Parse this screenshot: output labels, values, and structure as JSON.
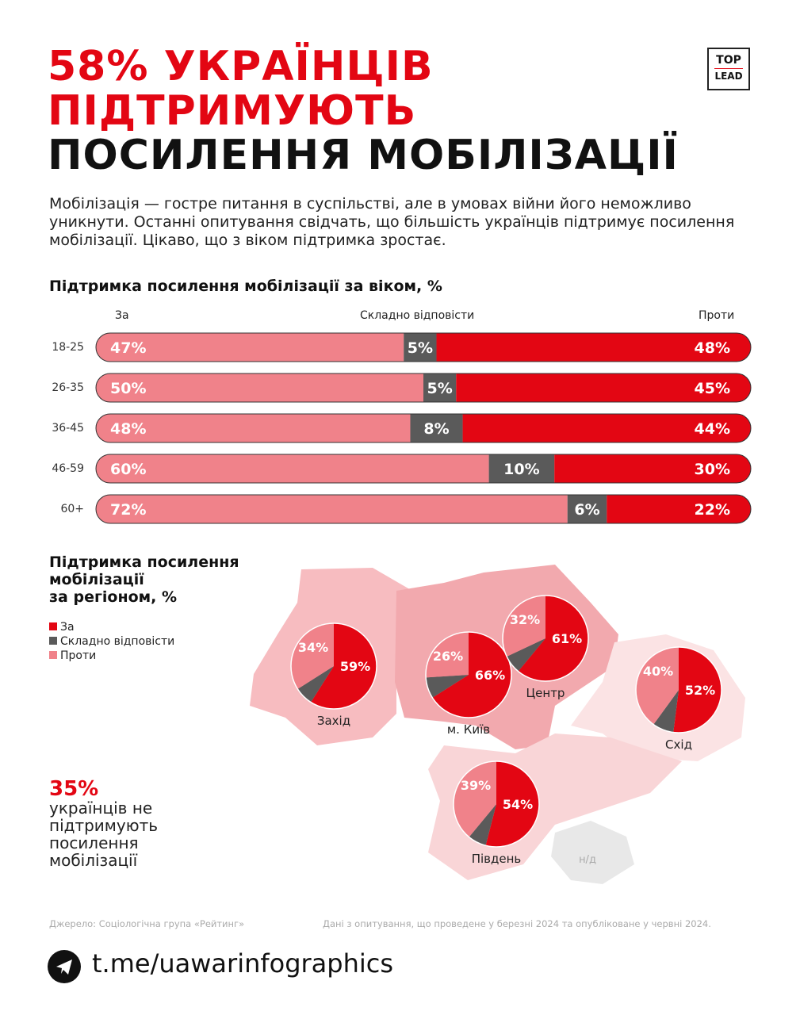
{
  "header": {
    "title_line1": "58% УКРАЇНЦІВ",
    "title_line2": "ПІДТРИМУЮТЬ",
    "title_line3": "ПОСИЛЕННЯ МОБІЛІЗАЦІЇ",
    "logo_top": "TOP",
    "logo_bottom": "LEAD"
  },
  "intro": "Мобілізація — гостре питання в суспільстві, але в умовах війни його неможливо уникнути. Останні опитування свідчать, що більшість українців підтримує посилення мобілізації. Цікаво, що з віком підтримка зростає.",
  "colors": {
    "za": "#f0828a",
    "skladno": "#5a5a5a",
    "proty": "#e30613"
  },
  "chart_data": [
    {
      "type": "bar",
      "stacked": true,
      "orientation": "horizontal",
      "title": "Підтримка посилення мобілізації за віком, %",
      "column_labels": [
        "За",
        "Складно відповісти",
        "Проти"
      ],
      "categories": [
        "18-25",
        "26-35",
        "36-45",
        "46-59",
        "60+"
      ],
      "series": [
        {
          "name": "За",
          "values": [
            47,
            50,
            48,
            60,
            72
          ],
          "labels": [
            "47%",
            "50%",
            "48%",
            "60%",
            "72%"
          ]
        },
        {
          "name": "Складно відповісти",
          "values": [
            5,
            5,
            8,
            10,
            6
          ],
          "labels": [
            "5%",
            "5%",
            "8%",
            "10%",
            "6%"
          ]
        },
        {
          "name": "Проти",
          "values": [
            48,
            45,
            44,
            30,
            22
          ],
          "labels": [
            "48%",
            "45%",
            "44%",
            "30%",
            "22%"
          ]
        }
      ]
    },
    {
      "type": "pie",
      "title_lines": [
        "Підтримка посилення",
        "мобілізації",
        "за регіоном, %"
      ],
      "legend": [
        "За",
        "Складно відповісти",
        "Проти"
      ],
      "regions": [
        {
          "name": "Захід",
          "za": 59,
          "skladno": 7,
          "proty": 34,
          "za_label": "59%",
          "proty_label": "34%"
        },
        {
          "name": "м. Київ",
          "za": 66,
          "skladno": 8,
          "proty": 26,
          "za_label": "66%",
          "proty_label": "26%"
        },
        {
          "name": "Центр",
          "za": 61,
          "skladno": 7,
          "proty": 32,
          "za_label": "61%",
          "proty_label": "32%"
        },
        {
          "name": "Схід",
          "za": 52,
          "skladno": 8,
          "proty": 40,
          "za_label": "52%",
          "proty_label": "40%"
        },
        {
          "name": "Південь",
          "za": 54,
          "skladno": 7,
          "proty": 39,
          "za_label": "54%",
          "proty_label": "39%"
        }
      ],
      "no_data_label": "н/д"
    }
  ],
  "callout": {
    "value": "35%",
    "text": "українців не підтримують посилення мобілізації"
  },
  "footer": {
    "source": "Джерело: Соціологічна група «Рейтинг»",
    "note": "Дані з опитування, що проведене у березні 2024 та опубліковане у червні 2024.",
    "link": "t.me/uawarinfographics"
  }
}
